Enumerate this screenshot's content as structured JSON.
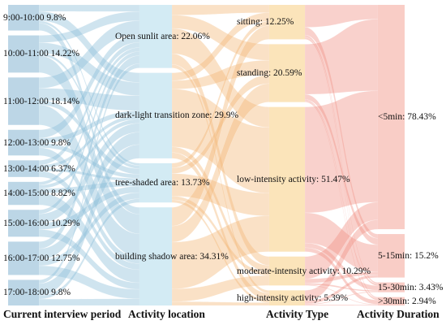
{
  "chart_data": {
    "type": "sankey",
    "columns": [
      {
        "key": "period",
        "title": "Current interview period",
        "color": "#b6d3e4",
        "nodes": [
          {
            "id": "p1",
            "label": "9:00-10:00 9.8%",
            "value": 9.8
          },
          {
            "id": "p2",
            "label": "10:00-11:00 14.22%",
            "value": 14.22
          },
          {
            "id": "p3",
            "label": "11:00-12:00 18.14%",
            "value": 18.14
          },
          {
            "id": "p4",
            "label": "12:00-13:00 9.8%",
            "value": 9.8
          },
          {
            "id": "p5",
            "label": "13:00-14:00 6.37%",
            "value": 6.37
          },
          {
            "id": "p6",
            "label": "14:00-15:00 8.82%",
            "value": 8.82
          },
          {
            "id": "p7",
            "label": "15:00-16:00 10.29%",
            "value": 10.29
          },
          {
            "id": "p8",
            "label": "16:00-17:00 12.75%",
            "value": 12.75
          },
          {
            "id": "p9",
            "label": "17:00-18:00 9.8%",
            "value": 9.8
          }
        ]
      },
      {
        "key": "location",
        "title": "Activity location",
        "color": "#cfe9f3",
        "nodes": [
          {
            "id": "l1",
            "label": "Open sunlit area: 22.06%",
            "value": 22.06
          },
          {
            "id": "l2",
            "label": "dark-light transition zone: 29.9%",
            "value": 29.9
          },
          {
            "id": "l3",
            "label": "tree-shaded area: 13.73%",
            "value": 13.73
          },
          {
            "id": "l4",
            "label": "building shadow area: 34.31%",
            "value": 34.31
          }
        ]
      },
      {
        "key": "type",
        "title": "Activity Type",
        "color": "#fbe2b4",
        "nodes": [
          {
            "id": "t1",
            "label": "sitting: 12.25%",
            "value": 12.25
          },
          {
            "id": "t2",
            "label": "standing: 20.59%",
            "value": 20.59
          },
          {
            "id": "t3",
            "label": "low-intensity activity: 51.47%",
            "value": 51.47
          },
          {
            "id": "t4",
            "label": "moderate-intensity activity: 10.29%",
            "value": 10.29
          },
          {
            "id": "t5",
            "label": "high-intensity activity: 5.39%",
            "value": 5.39
          }
        ]
      },
      {
        "key": "duration",
        "title": "Activity Duration",
        "color": "#f9c9c1",
        "nodes": [
          {
            "id": "d1",
            "label": "<5min: 78.43%",
            "value": 78.43
          },
          {
            "id": "d2",
            "label": "5-15min: 15.2%",
            "value": 15.2
          },
          {
            "id": "d3",
            "label": "15-30min: 3.43%",
            "value": 3.43
          },
          {
            "id": "d4",
            "label": ">30min: 2.94%",
            "value": 2.94
          }
        ]
      }
    ],
    "flow_colors": [
      "#8cbfd9",
      "#f2b877",
      "#f09185"
    ],
    "total_percent": 100
  }
}
